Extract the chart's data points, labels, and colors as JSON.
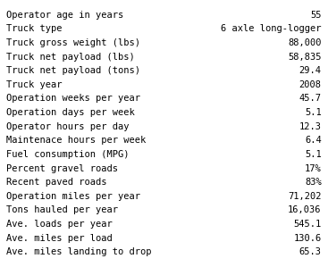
{
  "rows": [
    [
      "Operator age in years",
      "55"
    ],
    [
      "Truck type",
      "6 axle long-logger"
    ],
    [
      "Truck gross weight (lbs)",
      "88,000"
    ],
    [
      "Truck net payload (lbs)",
      "58,835"
    ],
    [
      "Truck net payload (tons)",
      "29.4"
    ],
    [
      "Truck year",
      "2008"
    ],
    [
      "Operation weeks per year",
      "45.7"
    ],
    [
      "Operation days per week",
      "5.1"
    ],
    [
      "Operator hours per day",
      "12.3"
    ],
    [
      "Maintenace hours per week",
      "6.4"
    ],
    [
      "Fuel consumption (MPG)",
      "5.1"
    ],
    [
      "Percent gravel roads",
      "17%"
    ],
    [
      "Recent paved roads",
      "83%"
    ],
    [
      "Operation miles per year",
      "71,202"
    ],
    [
      "Tons hauled per year",
      "16,036"
    ],
    [
      "Ave. loads per year",
      "545.1"
    ],
    [
      "Ave. miles per load",
      "130.6"
    ],
    [
      "Ave. miles landing to drop",
      "65.3"
    ]
  ],
  "bg_color": "#ffffff",
  "text_color": "#000000",
  "font_size": 7.5,
  "font_family": "DejaVu Sans Mono"
}
